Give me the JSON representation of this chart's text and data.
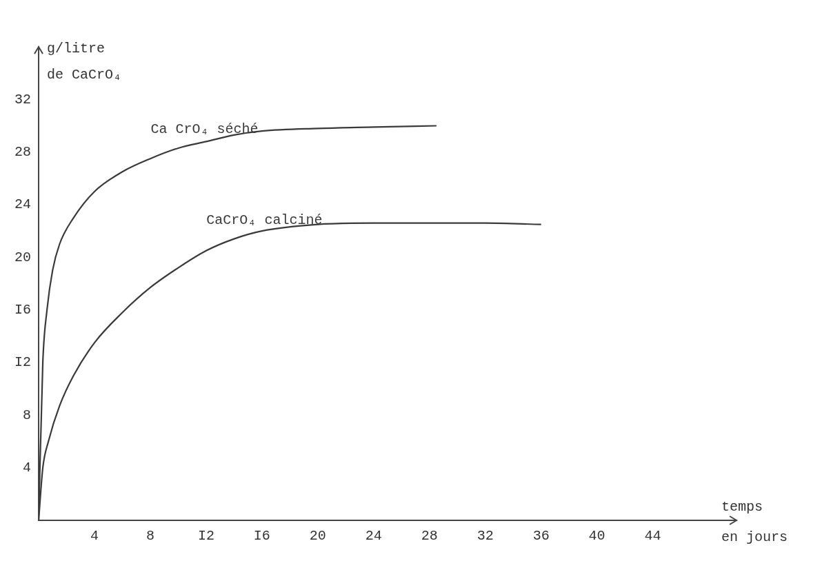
{
  "chart_data": {
    "type": "line",
    "xlabel": "temps en jours",
    "ylabel": "g/litre de CaCrO₄",
    "xlim": [
      0,
      50
    ],
    "ylim": [
      0,
      36
    ],
    "xticks": [
      4,
      8,
      {
        "value": 12,
        "label": "I2"
      },
      {
        "value": 16,
        "label": "I6"
      },
      20,
      24,
      28,
      32,
      36,
      40,
      44
    ],
    "yticks": [
      4,
      8,
      {
        "value": 12,
        "label": "I2"
      },
      {
        "value": 16,
        "label": "I6"
      },
      20,
      24,
      28,
      32
    ],
    "grid": false,
    "legend": false,
    "marker": "none",
    "line_style": "solid",
    "series": [
      {
        "name": "Ca CrO₄ séché",
        "color": "#3a3a3a",
        "x": [
          0,
          0.3,
          0.6,
          1,
          1.5,
          2.5,
          4,
          6,
          8,
          10,
          12,
          14,
          16,
          20,
          24,
          28.5
        ],
        "values": [
          0,
          12,
          16,
          19,
          21,
          23,
          25,
          26.5,
          27.5,
          28.3,
          28.8,
          29.3,
          29.6,
          29.8,
          29.9,
          30
        ]
      },
      {
        "name": "CaCrO₄ calciné",
        "color": "#3a3a3a",
        "x": [
          0,
          0.3,
          0.7,
          1.5,
          2.5,
          4,
          6,
          8,
          10,
          12,
          14,
          16,
          20,
          24,
          28,
          32,
          36
        ],
        "values": [
          0,
          4,
          6,
          8.7,
          11,
          13.5,
          15.8,
          17.7,
          19.2,
          20.5,
          21.4,
          22,
          22.5,
          22.6,
          22.6,
          22.6,
          22.5
        ]
      }
    ]
  }
}
